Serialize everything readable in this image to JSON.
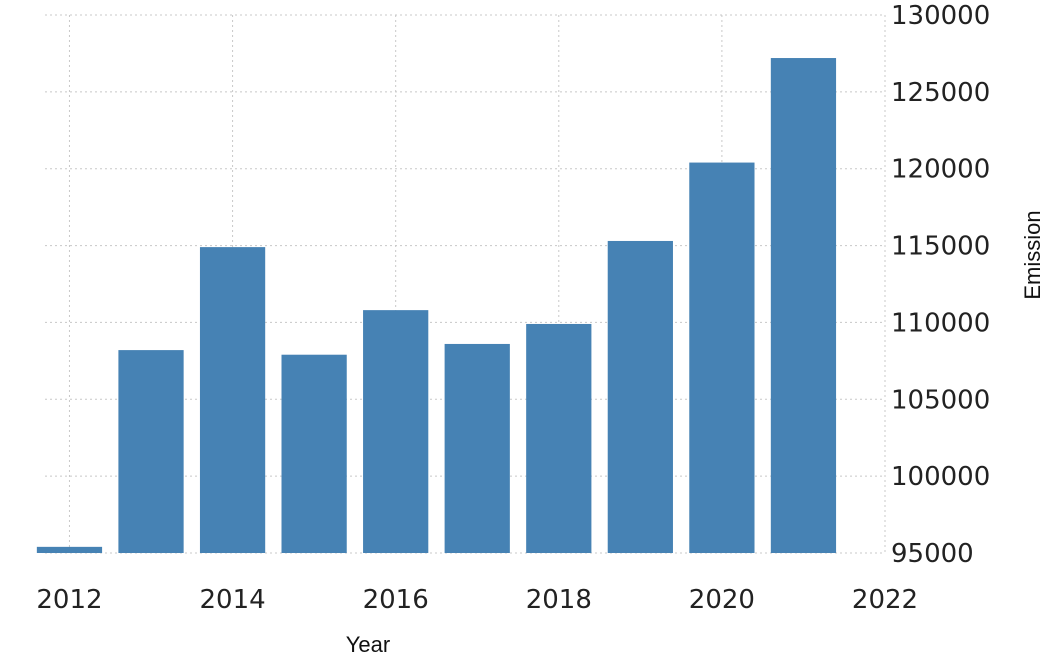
{
  "chart_data": {
    "type": "bar",
    "x": [
      2012,
      2013,
      2014,
      2015,
      2016,
      2017,
      2018,
      2019,
      2020,
      2021
    ],
    "values": [
      95400,
      108200,
      114900,
      107900,
      110800,
      108600,
      109900,
      115300,
      120400,
      127200
    ],
    "xlabel": "Year",
    "ylabel": "Emission",
    "xlim": [
      2011.7,
      2022
    ],
    "ylim": [
      95000,
      130000
    ],
    "x_ticks": [
      "2012",
      "2014",
      "2016",
      "2018",
      "2020",
      "2022"
    ],
    "y_ticks": [
      "95000",
      "100000",
      "105000",
      "110000",
      "115000",
      "120000",
      "125000",
      "130000"
    ],
    "y_axis_side": "right",
    "grid": true,
    "colors": {
      "bar": "#4682b4",
      "grid": "#c8c8c8"
    }
  }
}
